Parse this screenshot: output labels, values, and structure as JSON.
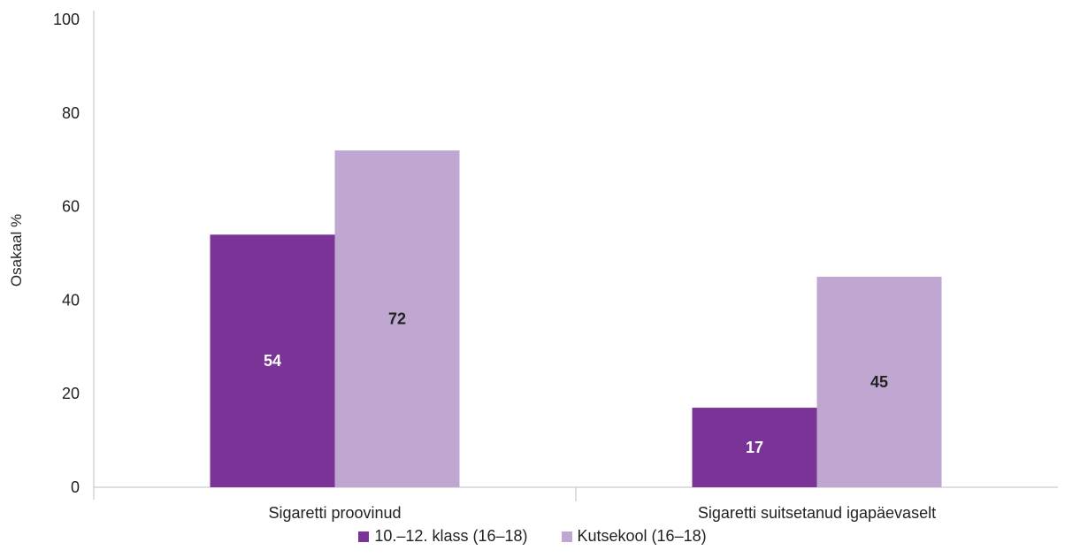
{
  "chart_data": {
    "type": "bar",
    "categories": [
      "Sigaretti proovinud",
      "Sigaretti suitsetanud igapäevaselt"
    ],
    "series": [
      {
        "name": "10.–12. klass (16–18)",
        "values": [
          54,
          17
        ],
        "color": "#7a3396",
        "label_color": "#ffffff"
      },
      {
        "name": "Kutsekool (16–18)",
        "values": [
          72,
          45
        ],
        "color": "#c0a7d1",
        "label_color": "#222222"
      }
    ],
    "ylabel": "Osakaal %",
    "ylim": [
      0,
      100
    ],
    "yticks": [
      0,
      20,
      40,
      60,
      80,
      100
    ],
    "legend_position": "bottom"
  }
}
